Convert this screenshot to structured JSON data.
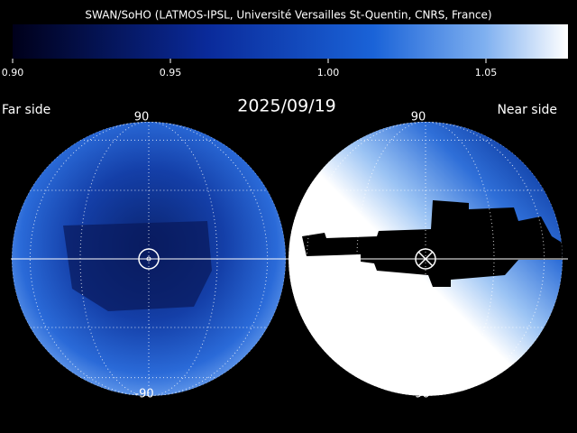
{
  "title": "SWAN/SoHO (LATMOS-IPSL, Université Versailles St-Quentin, CNRS, France)",
  "colorbar": {
    "xlim": [
      0.9,
      1.076
    ],
    "xticks": [
      {
        "value": 0.9,
        "label": "0.90"
      },
      {
        "value": 0.95,
        "label": "0.95"
      },
      {
        "value": 1.0,
        "label": "1.00"
      },
      {
        "value": 1.05,
        "label": "1.05"
      }
    ]
  },
  "date": "2025/09/19",
  "left_map": {
    "label": "Far side",
    "top": "90",
    "bottom": "-90"
  },
  "right_map": {
    "label": "Near side",
    "top": "90",
    "bottom": "-90"
  }
}
